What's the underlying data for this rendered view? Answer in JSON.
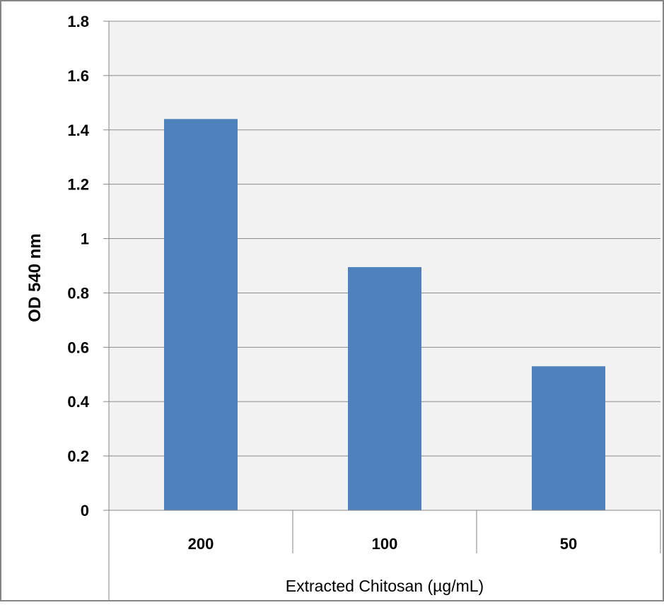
{
  "chart_data": {
    "type": "bar",
    "title": "",
    "xlabel": "Extracted Chitosan (µg/mL)",
    "ylabel": "OD 540 nm",
    "categories": [
      "200",
      "100",
      "50"
    ],
    "values": [
      1.44,
      0.895,
      0.53
    ],
    "ylim": [
      0,
      1.8
    ],
    "yticks": [
      "0",
      "0.2",
      "0.4",
      "0.6",
      "0.8",
      "1",
      "1.2",
      "1.4",
      "1.6",
      "1.8"
    ],
    "grid": true,
    "legend": "none",
    "colors": {
      "bar": "#4f81bd",
      "plot_background": "#f2f2f2",
      "gridline": "#8c8c8c",
      "frame": "#868686"
    }
  }
}
